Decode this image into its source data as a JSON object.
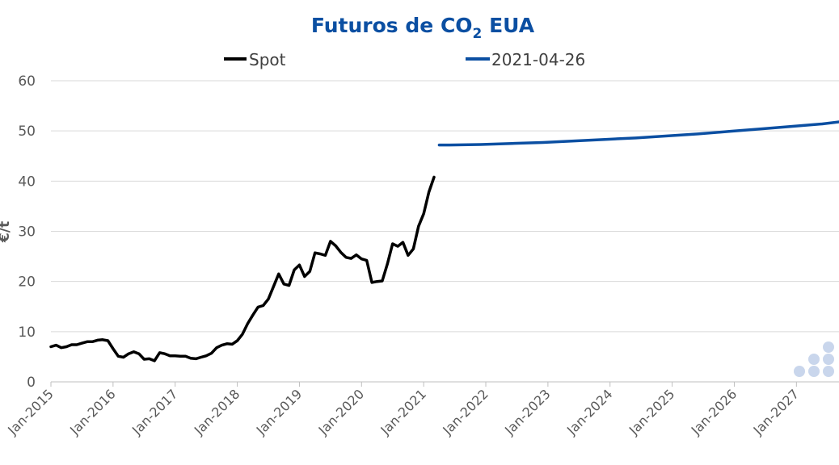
{
  "chart_data": {
    "type": "line",
    "title": "Futuros de CO2 EUA",
    "title_parts": {
      "main": "Futuros de CO",
      "sub": "2",
      "tail": " EUA"
    },
    "ylabel": "€/t",
    "ylim": [
      0,
      60
    ],
    "yticks": [
      0,
      10,
      20,
      30,
      40,
      50,
      60
    ],
    "xlim": [
      "2015-01",
      "2027-10"
    ],
    "xticks": [
      "Jan-2015",
      "Jan-2016",
      "Jan-2017",
      "Jan-2018",
      "Jan-2019",
      "Jan-2020",
      "Jan-2021",
      "Jan-2022",
      "Jan-2023",
      "Jan-2024",
      "Jan-2025",
      "Jan-2026",
      "Jan-2027"
    ],
    "grid": "horizontal",
    "legend_position": "top",
    "series": [
      {
        "name": "Spot",
        "color": "#000000",
        "points": [
          [
            "2015-01",
            7.0
          ],
          [
            "2015-02",
            7.3
          ],
          [
            "2015-03",
            6.8
          ],
          [
            "2015-04",
            7.0
          ],
          [
            "2015-05",
            7.4
          ],
          [
            "2015-06",
            7.4
          ],
          [
            "2015-07",
            7.7
          ],
          [
            "2015-08",
            8.0
          ],
          [
            "2015-09",
            8.0
          ],
          [
            "2015-10",
            8.3
          ],
          [
            "2015-11",
            8.4
          ],
          [
            "2015-12",
            8.2
          ],
          [
            "2016-01",
            6.6
          ],
          [
            "2016-02",
            5.1
          ],
          [
            "2016-03",
            4.9
          ],
          [
            "2016-04",
            5.6
          ],
          [
            "2016-05",
            6.0
          ],
          [
            "2016-06",
            5.6
          ],
          [
            "2016-07",
            4.5
          ],
          [
            "2016-08",
            4.6
          ],
          [
            "2016-09",
            4.2
          ],
          [
            "2016-10",
            5.8
          ],
          [
            "2016-11",
            5.6
          ],
          [
            "2016-12",
            5.2
          ],
          [
            "2017-01",
            5.2
          ],
          [
            "2017-02",
            5.1
          ],
          [
            "2017-03",
            5.1
          ],
          [
            "2017-04",
            4.7
          ],
          [
            "2017-05",
            4.6
          ],
          [
            "2017-06",
            4.9
          ],
          [
            "2017-07",
            5.2
          ],
          [
            "2017-08",
            5.7
          ],
          [
            "2017-09",
            6.8
          ],
          [
            "2017-10",
            7.3
          ],
          [
            "2017-11",
            7.6
          ],
          [
            "2017-12",
            7.5
          ],
          [
            "2018-01",
            8.2
          ],
          [
            "2018-02",
            9.5
          ],
          [
            "2018-03",
            11.6
          ],
          [
            "2018-04",
            13.3
          ],
          [
            "2018-05",
            14.9
          ],
          [
            "2018-06",
            15.2
          ],
          [
            "2018-07",
            16.5
          ],
          [
            "2018-08",
            19.0
          ],
          [
            "2018-09",
            21.5
          ],
          [
            "2018-10",
            19.5
          ],
          [
            "2018-11",
            19.2
          ],
          [
            "2018-12",
            22.3
          ],
          [
            "2019-01",
            23.3
          ],
          [
            "2019-02",
            21.0
          ],
          [
            "2019-03",
            22.0
          ],
          [
            "2019-04",
            25.7
          ],
          [
            "2019-05",
            25.5
          ],
          [
            "2019-06",
            25.2
          ],
          [
            "2019-07",
            28.0
          ],
          [
            "2019-08",
            27.1
          ],
          [
            "2019-09",
            25.8
          ],
          [
            "2019-10",
            24.8
          ],
          [
            "2019-11",
            24.6
          ],
          [
            "2019-12",
            25.3
          ],
          [
            "2020-01",
            24.5
          ],
          [
            "2020-02",
            24.2
          ],
          [
            "2020-03",
            19.8
          ],
          [
            "2020-04",
            20.0
          ],
          [
            "2020-05",
            20.1
          ],
          [
            "2020-06",
            23.5
          ],
          [
            "2020-07",
            27.5
          ],
          [
            "2020-08",
            27.0
          ],
          [
            "2020-09",
            27.8
          ],
          [
            "2020-10",
            25.2
          ],
          [
            "2020-11",
            26.5
          ],
          [
            "2020-12",
            31.0
          ],
          [
            "2021-01",
            33.5
          ],
          [
            "2021-02",
            37.8
          ],
          [
            "2021-03",
            40.8
          ]
        ]
      },
      {
        "name": "2021-04-26",
        "color": "#0B4FA2",
        "points": [
          [
            "2021-04",
            47.2
          ],
          [
            "2021-06",
            47.2
          ],
          [
            "2021-12",
            47.3
          ],
          [
            "2022-06",
            47.5
          ],
          [
            "2022-12",
            47.7
          ],
          [
            "2023-06",
            48.0
          ],
          [
            "2023-12",
            48.3
          ],
          [
            "2024-06",
            48.6
          ],
          [
            "2024-12",
            49.0
          ],
          [
            "2025-06",
            49.4
          ],
          [
            "2025-12",
            49.9
          ],
          [
            "2026-06",
            50.4
          ],
          [
            "2026-12",
            50.9
          ],
          [
            "2027-06",
            51.4
          ],
          [
            "2027-10",
            51.9
          ]
        ]
      }
    ]
  },
  "colors": {
    "title": "#0B4FA2",
    "grid": "#D9D9D9",
    "axis": "#BFBFBF",
    "watermark": "#C9D6EC"
  },
  "watermark_icon": "dots-logo-icon"
}
